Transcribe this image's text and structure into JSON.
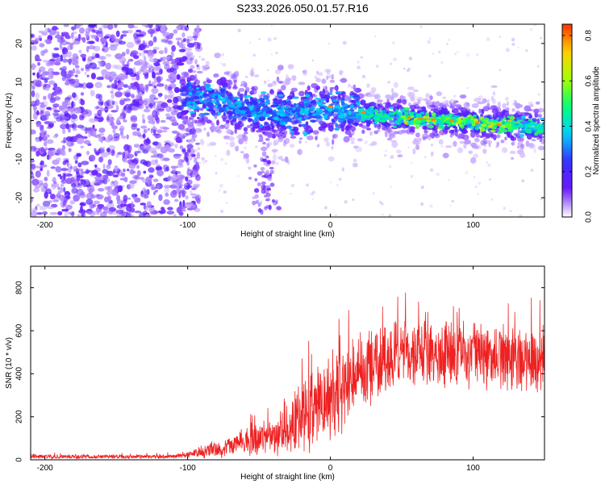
{
  "title": "S233.2026.050.01.57.R16",
  "colors": {
    "snr_line": "#ee2222",
    "axis": "#000000",
    "background": "#ffffff"
  },
  "colormap": [
    "#ffffff",
    "#6a1bff",
    "#3a2bff",
    "#00cfff",
    "#00ff7a",
    "#a8ff00",
    "#ffd000",
    "#ff3000"
  ],
  "chart_data": [
    {
      "type": "heatmap",
      "name": "spectrogram",
      "xlabel": "Height of straight line (km)",
      "ylabel": "Frequency (Hz)",
      "xlim": [
        -210,
        150
      ],
      "ylim": [
        -25,
        25
      ],
      "xticks": [
        -200,
        -100,
        0,
        100
      ],
      "xtick_labels": [
        "-200",
        "-100",
        "0",
        "100"
      ],
      "yticks": [
        -20,
        -10,
        0,
        10,
        20
      ],
      "ytick_labels": [
        "-20",
        "-10",
        "0",
        "10",
        "20"
      ],
      "ridge": {
        "x": [
          -100,
          -80,
          -60,
          -40,
          -20,
          0,
          20,
          40,
          60,
          80,
          100,
          120,
          150
        ],
        "freq": [
          6,
          5,
          3,
          2,
          2,
          3,
          2,
          1,
          0.5,
          0,
          -0.5,
          -1,
          -1.5
        ]
      },
      "colorbar": {
        "label": "Normalized spectral amplitude",
        "range": [
          0,
          0.85
        ],
        "ticks": [
          0.0,
          0.2,
          0.4,
          0.6,
          0.8
        ],
        "tick_labels": [
          "0.0",
          "0.2",
          "0.4",
          "0.6",
          "0.8"
        ]
      }
    },
    {
      "type": "line",
      "name": "snr",
      "xlabel": "Height of straight line (km)",
      "ylabel": "SNR (10 * v/v)",
      "xlim": [
        -210,
        150
      ],
      "ylim": [
        0,
        900
      ],
      "xticks": [
        -200,
        -100,
        0,
        100
      ],
      "xtick_labels": [
        "-200",
        "-100",
        "0",
        "100"
      ],
      "yticks": [
        0,
        200,
        400,
        600,
        800
      ],
      "ytick_labels": [
        "0",
        "200",
        "400",
        "600",
        "800"
      ],
      "envelope": {
        "x": [
          -210,
          -110,
          -100,
          -80,
          -60,
          -40,
          -25,
          -10,
          0,
          10,
          20,
          40,
          60,
          80,
          100,
          120,
          150
        ],
        "mean": [
          15,
          15,
          25,
          50,
          80,
          110,
          180,
          240,
          300,
          360,
          420,
          470,
          490,
          490,
          480,
          470,
          460
        ],
        "amp": [
          10,
          10,
          15,
          40,
          60,
          90,
          150,
          180,
          200,
          200,
          180,
          160,
          150,
          150,
          150,
          150,
          150
        ]
      }
    }
  ]
}
